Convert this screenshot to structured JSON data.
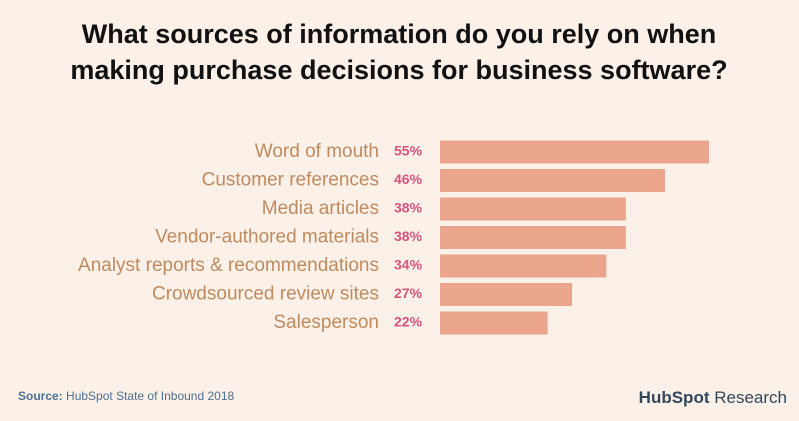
{
  "chart_data": {
    "type": "hbar",
    "title_lines": [
      "What sources of information do you rely on when",
      "making purchase decisions for business software?"
    ],
    "categories": [
      "Word of mouth",
      "Customer references",
      "Media articles",
      "Vendor-authored materials",
      "Analyst reports & recommendations",
      "Crowdsourced review sites",
      "Salesperson"
    ],
    "values": [
      55,
      46,
      38,
      38,
      34,
      27,
      22
    ],
    "value_labels": [
      "55%",
      "46%",
      "38%",
      "38%",
      "34%",
      "27%",
      "22%"
    ],
    "color": "#eba58c",
    "source_label": "Source:",
    "source": "HubSpot State of Inbound 2018",
    "brand": "HubSpot",
    "brand_suffix": "Research"
  }
}
